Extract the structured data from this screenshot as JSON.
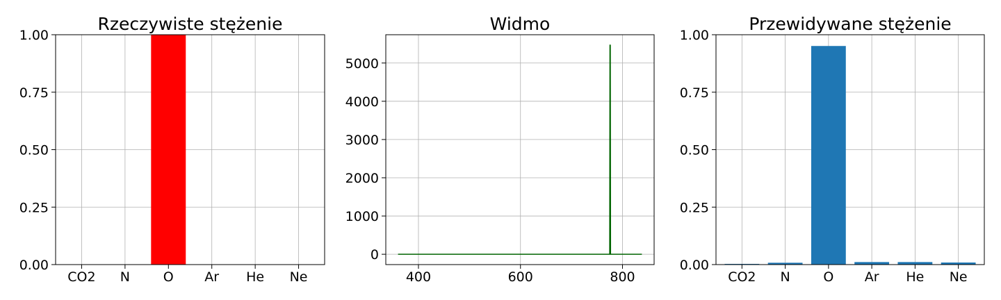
{
  "chart_data": [
    {
      "type": "bar",
      "title": "Rzeczywiste stężenie",
      "categories": [
        "CO2",
        "N",
        "O",
        "Ar",
        "He",
        "Ne"
      ],
      "values": [
        0,
        0,
        1.0,
        0,
        0,
        0
      ],
      "ylim": [
        0,
        1.0
      ],
      "yticks": [
        "0.00",
        "0.25",
        "0.50",
        "0.75",
        "1.00"
      ],
      "color": "#ff0000",
      "grid": true
    },
    {
      "type": "line",
      "title": "Widmo",
      "series": [
        {
          "x": [
            360,
            775,
            775.5,
            776,
            776.5,
            838
          ],
          "y": [
            0,
            0,
            5470,
            5470,
            0,
            0
          ]
        }
      ],
      "xlim": [
        336,
        862
      ],
      "ylim": [
        -270,
        5740
      ],
      "xticks": [
        "400",
        "600",
        "800"
      ],
      "yticks": [
        "0",
        "1000",
        "2000",
        "3000",
        "4000",
        "5000"
      ],
      "color": "#006400",
      "grid": true
    },
    {
      "type": "bar",
      "title": "Przewidywane stężenie",
      "categories": [
        "CO2",
        "N",
        "O",
        "Ar",
        "He",
        "Ne"
      ],
      "values": [
        0.003,
        0.008,
        0.951,
        0.011,
        0.011,
        0.009
      ],
      "ylim": [
        0,
        1.0
      ],
      "yticks": [
        "0.00",
        "0.25",
        "0.50",
        "0.75",
        "1.00"
      ],
      "color": "#1f77b4",
      "grid": true
    }
  ]
}
